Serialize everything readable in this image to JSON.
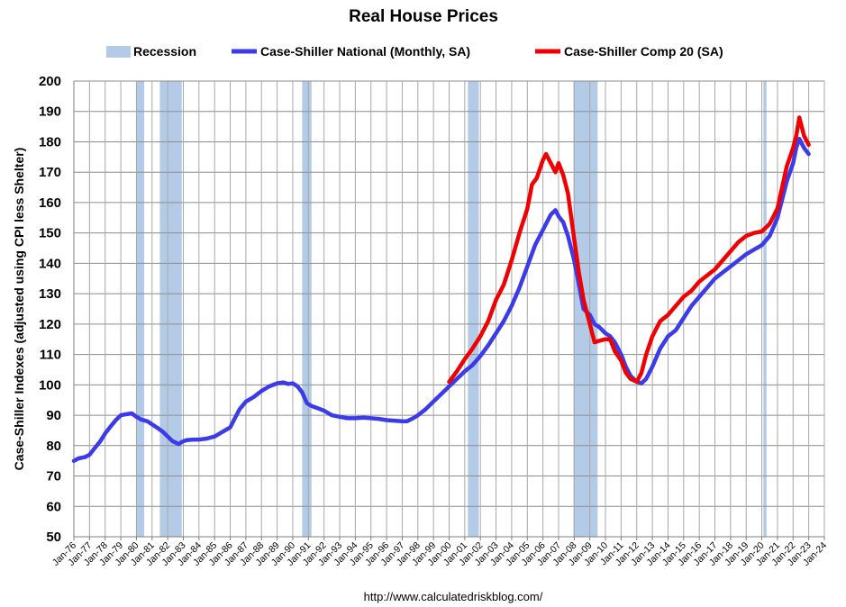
{
  "chart_data": {
    "type": "line",
    "title": "Real House Prices",
    "ylabel": "Case-Shiller Indexes (adjusted using CPI less Shelter)",
    "xlabel": "",
    "source": "http://www.calculatedriskblog.com/",
    "ylim": [
      50,
      200
    ],
    "yticks": [
      50,
      60,
      70,
      80,
      90,
      100,
      110,
      120,
      130,
      140,
      150,
      160,
      170,
      180,
      190,
      200
    ],
    "xlim": [
      1976,
      2024
    ],
    "xticks": [
      "Jan-76",
      "Jan-77",
      "Jan-78",
      "Jan-79",
      "Jan-80",
      "Jan-81",
      "Jan-82",
      "Jan-83",
      "Jan-84",
      "Jan-85",
      "Jan-86",
      "Jan-87",
      "Jan-88",
      "Jan-89",
      "Jan-90",
      "Jan-91",
      "Jan-92",
      "Jan-93",
      "Jan-94",
      "Jan-95",
      "Jan-96",
      "Jan-97",
      "Jan-98",
      "Jan-99",
      "Jan-00",
      "Jan-01",
      "Jan-02",
      "Jan-03",
      "Jan-04",
      "Jan-05",
      "Jan-06",
      "Jan-07",
      "Jan-08",
      "Jan-09",
      "Jan-10",
      "Jan-11",
      "Jan-12",
      "Jan-13",
      "Jan-14",
      "Jan-15",
      "Jan-16",
      "Jan-17",
      "Jan-18",
      "Jan-19",
      "Jan-20",
      "Jan-21",
      "Jan-22",
      "Jan-23",
      "Jan-24"
    ],
    "grid": true,
    "legend_position": "top",
    "legend": [
      {
        "label": "Recession",
        "color": "#b4cbe8",
        "kind": "patch"
      },
      {
        "label": "Case-Shiller National (Monthly, SA)",
        "color": "#3b3bea",
        "kind": "line"
      },
      {
        "label": "Case-Shiller Comp 20  (SA)",
        "color": "#f00000",
        "kind": "line"
      }
    ],
    "recessions": [
      [
        1980.0,
        1980.5
      ],
      [
        1981.5,
        1982.9
      ],
      [
        1990.6,
        1991.2
      ],
      [
        2001.2,
        2001.9
      ],
      [
        2007.95,
        2009.5
      ],
      [
        2020.1,
        2020.3
      ]
    ],
    "series": [
      {
        "name": "Case-Shiller National (Monthly, SA)",
        "color": "#3b3bea",
        "x": [
          1976.0,
          1976.3,
          1976.7,
          1977.0,
          1977.3,
          1977.7,
          1978.0,
          1978.3,
          1978.7,
          1979.0,
          1979.3,
          1979.7,
          1980.0,
          1980.3,
          1980.7,
          1981.0,
          1981.3,
          1981.7,
          1982.0,
          1982.3,
          1982.7,
          1982.9,
          1983.2,
          1983.6,
          1984.0,
          1984.5,
          1985.0,
          1985.5,
          1986.0,
          1986.3,
          1986.6,
          1987.0,
          1987.5,
          1988.0,
          1988.5,
          1989.0,
          1989.4,
          1989.7,
          1990.0,
          1990.3,
          1990.6,
          1990.9,
          1991.2,
          1991.6,
          1992.0,
          1992.5,
          1993.0,
          1993.5,
          1994.0,
          1994.5,
          1995.0,
          1995.5,
          1996.0,
          1996.5,
          1997.0,
          1997.3,
          1997.7,
          1998.0,
          1998.5,
          1999.0,
          1999.5,
          2000.0,
          2000.5,
          2001.0,
          2001.5,
          2002.0,
          2002.5,
          2003.0,
          2003.5,
          2004.0,
          2004.5,
          2005.0,
          2005.5,
          2006.0,
          2006.2,
          2006.5,
          2006.8,
          2007.0,
          2007.3,
          2007.6,
          2008.0,
          2008.3,
          2008.6,
          2009.0,
          2009.3,
          2009.6,
          2010.0,
          2010.3,
          2010.6,
          2011.0,
          2011.3,
          2011.6,
          2012.0,
          2012.3,
          2012.6,
          2013.0,
          2013.5,
          2014.0,
          2014.5,
          2015.0,
          2015.5,
          2016.0,
          2016.5,
          2017.0,
          2017.5,
          2018.0,
          2018.5,
          2019.0,
          2019.5,
          2020.0,
          2020.5,
          2021.0,
          2021.3,
          2021.6,
          2022.0,
          2022.2,
          2022.4,
          2022.7,
          2023.0
        ],
        "y": [
          75,
          75.8,
          76.2,
          77,
          79,
          81.5,
          84,
          86,
          88.5,
          90,
          90.3,
          90.6,
          89.5,
          88.6,
          88,
          87,
          86,
          84.5,
          83,
          81.5,
          80.5,
          81.2,
          81.8,
          82,
          82,
          82.3,
          83,
          84.5,
          86,
          89,
          92,
          94.5,
          96,
          98,
          99.5,
          100.5,
          100.8,
          100.3,
          100.5,
          99.5,
          97.5,
          94,
          93,
          92.3,
          91.5,
          90,
          89.5,
          89,
          89,
          89.2,
          89,
          88.8,
          88.4,
          88.2,
          88,
          88,
          89,
          90,
          92,
          94.5,
          97,
          99.5,
          102,
          104.5,
          106.5,
          109.5,
          113,
          117,
          121,
          126,
          132,
          139,
          146,
          151,
          153,
          156,
          157.5,
          155.5,
          153.5,
          149,
          141,
          133,
          125,
          123,
          120,
          119,
          117,
          116,
          114,
          110,
          106,
          103,
          101,
          100.5,
          102,
          106,
          112,
          116,
          118,
          122,
          126,
          129,
          132,
          135,
          137,
          139,
          141,
          143,
          144.5,
          146,
          149,
          155,
          161,
          167,
          173,
          178,
          181,
          178,
          176
        ]
      },
      {
        "name": "Case-Shiller Comp 20  (SA)",
        "color": "#f00000",
        "x": [
          2000.0,
          2000.5,
          2001.0,
          2001.5,
          2002.0,
          2002.5,
          2003.0,
          2003.5,
          2004.0,
          2004.5,
          2005.0,
          2005.3,
          2005.6,
          2006.0,
          2006.2,
          2006.5,
          2006.8,
          2007.0,
          2007.3,
          2007.6,
          2008.0,
          2008.3,
          2008.6,
          2009.0,
          2009.3,
          2009.6,
          2010.0,
          2010.3,
          2010.6,
          2011.0,
          2011.3,
          2011.6,
          2012.0,
          2012.3,
          2012.6,
          2013.0,
          2013.5,
          2014.0,
          2014.5,
          2015.0,
          2015.5,
          2016.0,
          2016.5,
          2017.0,
          2017.5,
          2018.0,
          2018.5,
          2019.0,
          2019.5,
          2020.0,
          2020.5,
          2021.0,
          2021.3,
          2021.6,
          2022.0,
          2022.2,
          2022.4,
          2022.7,
          2023.0
        ],
        "y": [
          101,
          104.5,
          108.5,
          112,
          116,
          121,
          128,
          133,
          141,
          150,
          158,
          166,
          168,
          174,
          176,
          173,
          170,
          173,
          169,
          163,
          148,
          137,
          128,
          120,
          114,
          114.5,
          115,
          115,
          111,
          108,
          104,
          102,
          101,
          104,
          110,
          116,
          121,
          123,
          126,
          129,
          131,
          134,
          136,
          138,
          141,
          144,
          147,
          149,
          150,
          150.5,
          153,
          158,
          165,
          172,
          178,
          182,
          188,
          182,
          179
        ]
      }
    ]
  }
}
